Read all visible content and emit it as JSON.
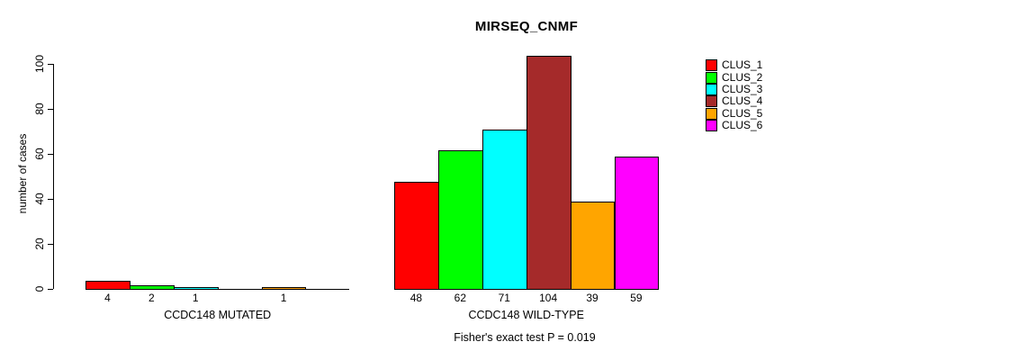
{
  "title": "MIRSEQ_CNMF",
  "footer": "Fisher's exact test P = 0.019",
  "axis_color": "#000000",
  "background_color": "#ffffff",
  "chart_data": {
    "type": "bar",
    "title": "MIRSEQ_CNMF",
    "ylabel": "number of cases",
    "xlabel": "",
    "ylim": [
      0,
      104
    ],
    "yticks": [
      0,
      20,
      40,
      60,
      80,
      100
    ],
    "grid": false,
    "legend_position": "right",
    "categories": [
      "CCDC148 MUTATED",
      "CCDC148 WILD-TYPE"
    ],
    "series": [
      {
        "name": "CLUS_1",
        "color": "#FF0000",
        "values": [
          4,
          48
        ]
      },
      {
        "name": "CLUS_2",
        "color": "#00FF00",
        "values": [
          2,
          62
        ]
      },
      {
        "name": "CLUS_3",
        "color": "#00FFFF",
        "values": [
          1,
          71
        ]
      },
      {
        "name": "CLUS_4",
        "color": "#A52A2A",
        "values": [
          0,
          104
        ]
      },
      {
        "name": "CLUS_5",
        "color": "#FFA500",
        "values": [
          1,
          39
        ]
      },
      {
        "name": "CLUS_6",
        "color": "#FF00FF",
        "values": [
          0,
          59
        ]
      }
    ],
    "bar_value_labels": [
      [
        "4",
        "2",
        "1",
        "",
        "1",
        ""
      ],
      [
        "48",
        "62",
        "71",
        "104",
        "39",
        "59"
      ]
    ],
    "annotation": "Fisher's exact test P = 0.019"
  }
}
